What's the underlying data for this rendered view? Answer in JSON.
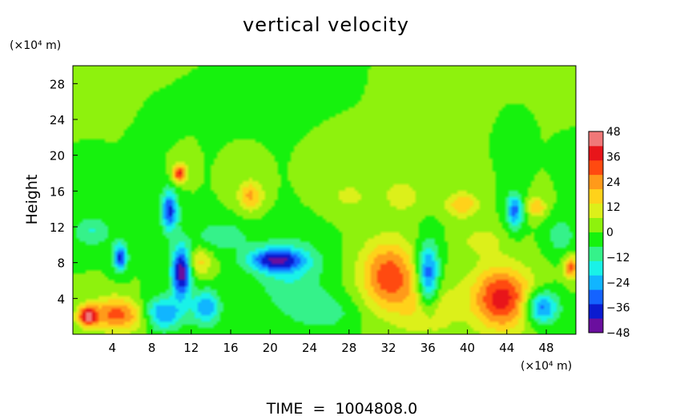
{
  "chart_data": {
    "type": "heatmap",
    "title": "vertical velocity",
    "ylabel": "Height",
    "y_unit": "(×10⁴ m)",
    "x_unit": "(×10⁴ m)",
    "xlim": [
      0,
      51
    ],
    "ylim": [
      0,
      30
    ],
    "x_ticks": [
      4,
      8,
      12,
      16,
      20,
      24,
      28,
      32,
      36,
      40,
      44,
      48
    ],
    "y_ticks": [
      4,
      8,
      12,
      16,
      20,
      24,
      28
    ],
    "footer": "TIME  =  1004808.0",
    "colorbar": {
      "ticks": [
        48,
        36,
        24,
        12,
        0,
        -12,
        -24,
        -36,
        -48
      ],
      "range": [
        -48,
        48
      ],
      "colors": [
        "#6a0f9e",
        "#0b1bd0",
        "#1463ff",
        "#11b5ff",
        "#19f2e8",
        "#35f28a",
        "#16f20d",
        "#8ef20d",
        "#dcf01a",
        "#ffd21a",
        "#ff9a1a",
        "#ff4a10",
        "#e8151a",
        "#f07878"
      ]
    },
    "background_value": 0,
    "features": [
      {
        "x": 1.5,
        "y": 2.0,
        "sx": 0.7,
        "sy": 0.8,
        "value": 40
      },
      {
        "x": 4.0,
        "y": 2.3,
        "sx": 1.6,
        "sy": 1.3,
        "value": 26
      },
      {
        "x": 6.5,
        "y": 2.0,
        "sx": 1.5,
        "sy": 1.2,
        "value": 14
      },
      {
        "x": 9.0,
        "y": 2.3,
        "sx": 1.5,
        "sy": 1.3,
        "value": -30
      },
      {
        "x": 13.5,
        "y": 3.0,
        "sx": 1.0,
        "sy": 1.4,
        "value": -26
      },
      {
        "x": 11.0,
        "y": 7.0,
        "sx": 0.7,
        "sy": 2.0,
        "value": -48
      },
      {
        "x": 12.8,
        "y": 8.0,
        "sx": 0.9,
        "sy": 1.2,
        "value": 16
      },
      {
        "x": 10.8,
        "y": 18.0,
        "sx": 0.5,
        "sy": 0.7,
        "value": 36
      },
      {
        "x": 9.8,
        "y": 13.8,
        "sx": 0.6,
        "sy": 1.6,
        "value": -36
      },
      {
        "x": 4.8,
        "y": 8.6,
        "sx": 0.5,
        "sy": 1.1,
        "value": -36
      },
      {
        "x": 18.0,
        "y": 15.5,
        "sx": 0.9,
        "sy": 1.2,
        "value": 22
      },
      {
        "x": 20.5,
        "y": 8.3,
        "sx": 2.0,
        "sy": 0.9,
        "value": -34
      },
      {
        "x": 22.0,
        "y": 7.0,
        "sx": 2.5,
        "sy": 3.0,
        "value": -14
      },
      {
        "x": 32.0,
        "y": 6.5,
        "sx": 2.0,
        "sy": 2.8,
        "value": 32
      },
      {
        "x": 36.0,
        "y": 6.5,
        "sx": 0.8,
        "sy": 2.5,
        "value": -38
      },
      {
        "x": 43.5,
        "y": 4.0,
        "sx": 2.2,
        "sy": 2.5,
        "value": 38
      },
      {
        "x": 47.5,
        "y": 3.0,
        "sx": 1.2,
        "sy": 1.3,
        "value": -34
      },
      {
        "x": 44.8,
        "y": 13.8,
        "sx": 0.6,
        "sy": 1.4,
        "value": -30
      },
      {
        "x": 39.5,
        "y": 14.5,
        "sx": 1.2,
        "sy": 1.0,
        "value": 20
      },
      {
        "x": 47.0,
        "y": 14.2,
        "sx": 0.7,
        "sy": 0.8,
        "value": 20
      },
      {
        "x": 50.5,
        "y": 7.5,
        "sx": 0.5,
        "sy": 0.9,
        "value": 30
      },
      {
        "x": 25.5,
        "y": 2.5,
        "sx": 2.5,
        "sy": 1.5,
        "value": -10
      },
      {
        "x": 36.0,
        "y": 3.0,
        "sx": 2.0,
        "sy": 2.5,
        "value": 14
      },
      {
        "x": 2.0,
        "y": 11.5,
        "sx": 1.4,
        "sy": 1.2,
        "value": -14
      },
      {
        "x": 15.0,
        "y": 11.0,
        "sx": 2.0,
        "sy": 1.2,
        "value": -12
      },
      {
        "x": 28.0,
        "y": 15.5,
        "sx": 2.0,
        "sy": 1.5,
        "value": 8
      },
      {
        "x": 33.5,
        "y": 15.5,
        "sx": 1.5,
        "sy": 1.5,
        "value": 10
      },
      {
        "x": 41.5,
        "y": 10.5,
        "sx": 1.5,
        "sy": 1.2,
        "value": 10
      },
      {
        "x": 49.5,
        "y": 11.0,
        "sx": 1.0,
        "sy": 1.5,
        "value": -12
      }
    ]
  }
}
